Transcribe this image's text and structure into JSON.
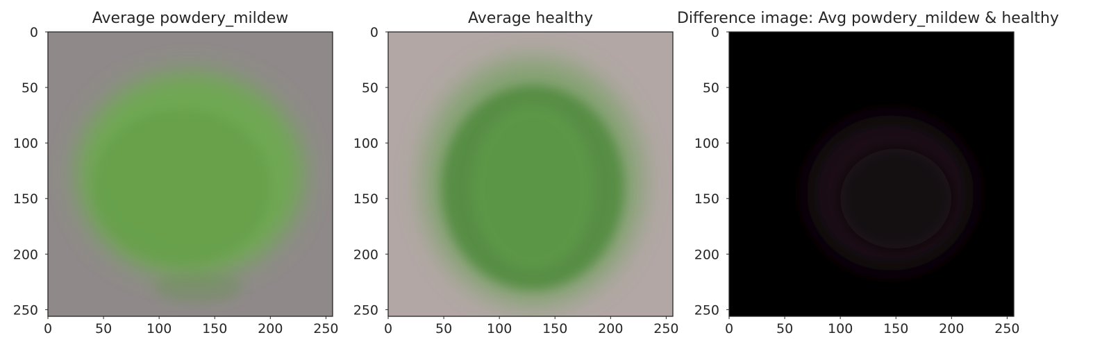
{
  "chart_data": [
    {
      "type": "image",
      "title": "Average powdery_mildew",
      "x_ticks": [
        0,
        50,
        100,
        150,
        200,
        250
      ],
      "y_ticks": [
        0,
        50,
        100,
        150,
        200,
        250
      ],
      "xlim": [
        0,
        256
      ],
      "ylim": [
        256,
        0
      ],
      "grid": false,
      "colors": {
        "background": "#8f8a89",
        "leaf": "#6eaa4f",
        "leaf_dark": "#5d9140"
      }
    },
    {
      "type": "image",
      "title": "Average healthy",
      "x_ticks": [
        0,
        50,
        100,
        150,
        200,
        250
      ],
      "y_ticks": [
        0,
        50,
        100,
        150,
        200,
        250
      ],
      "xlim": [
        0,
        256
      ],
      "ylim": [
        256,
        0
      ],
      "grid": false,
      "colors": {
        "background": "#b2a7a5",
        "leaf": "#5f9e48",
        "leaf_dark": "#4f8a3c"
      }
    },
    {
      "type": "image",
      "title": "Difference image: Avg powdery_mildew & healthy",
      "x_ticks": [
        0,
        50,
        100,
        150,
        200,
        250
      ],
      "y_ticks": [
        0,
        50,
        100,
        150,
        200,
        250
      ],
      "xlim": [
        0,
        256
      ],
      "ylim": [
        256,
        0
      ],
      "grid": false,
      "colors": {
        "background": "#000000",
        "leaf": "#1c0f18",
        "leaf_dark": "#120a10"
      }
    }
  ]
}
